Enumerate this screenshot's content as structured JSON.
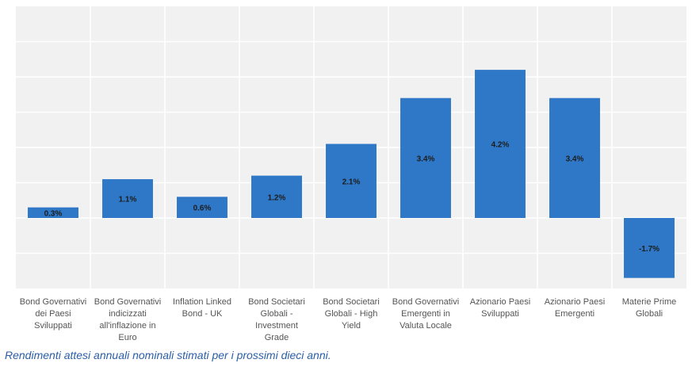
{
  "chart_data": {
    "type": "bar",
    "categories": [
      "Bond Governativi dei Paesi Sviluppati",
      "Bond Governativi indicizzati all'inflazione in Euro",
      "Inflation Linked Bond - UK",
      "Bond Societari Globali - Investment Grade",
      "Bond Societari Globali - High Yield",
      "Bond Governativi Emergenti in Valuta Locale",
      "Azionario Paesi Sviluppati",
      "Azionario Paesi Emergenti",
      "Materie Prime Globali"
    ],
    "category_lines": [
      [
        "Bond Governativi",
        "dei Paesi",
        "Sviluppati"
      ],
      [
        "Bond Governativi",
        "indicizzati",
        "all'inflazione in",
        "Euro"
      ],
      [
        "Inflation Linked",
        "Bond - UK"
      ],
      [
        "Bond Societari",
        "Globali -",
        "Investment",
        "Grade"
      ],
      [
        "Bond Societari",
        "Globali - High",
        "Yield"
      ],
      [
        "Bond Governativi",
        "Emergenti in",
        "Valuta Locale"
      ],
      [
        "Azionario Paesi",
        "Sviluppati"
      ],
      [
        "Azionario Paesi",
        "Emergenti"
      ],
      [
        "Materie Prime",
        "Globali"
      ]
    ],
    "values": [
      0.3,
      1.1,
      0.6,
      1.2,
      2.1,
      3.4,
      4.2,
      3.4,
      -1.7
    ],
    "data_labels": [
      "0.3%",
      "1.1%",
      "0.6%",
      "1.2%",
      "2.1%",
      "3.4%",
      "4.2%",
      "3.4%",
      "-1.7%"
    ],
    "ylim": [
      -2,
      6
    ],
    "grid": true,
    "title": "",
    "xlabel": "",
    "ylabel": "",
    "colors": {
      "bar": "#2e78c7",
      "plot_bg": "#f1f1f1",
      "grid": "#ffffff"
    }
  },
  "caption": "Rendimenti attesi annuali nominali stimati per i prossimi dieci anni."
}
